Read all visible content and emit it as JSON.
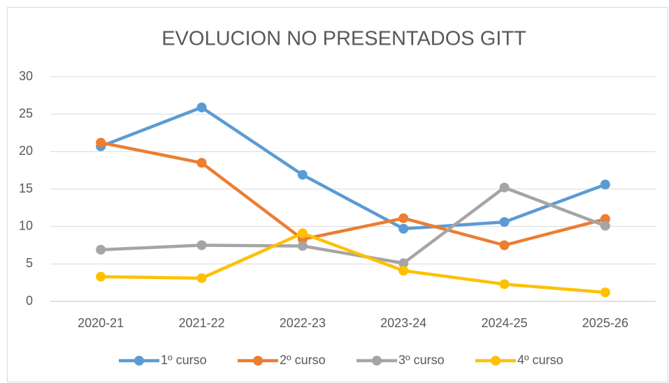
{
  "chart_data": {
    "type": "line",
    "title": "EVOLUCION NO PRESENTADOS GITT",
    "categories": [
      "2020-21",
      "2021-22",
      "2022-23",
      "2023-24",
      "2024-25",
      "2025-26"
    ],
    "series": [
      {
        "name": "1º curso",
        "color": "#5b9bd5",
        "values": [
          20.7,
          25.9,
          16.9,
          9.7,
          10.6,
          15.6
        ]
      },
      {
        "name": "2º curso",
        "color": "#ed7d31",
        "values": [
          21.2,
          18.5,
          8.3,
          11.1,
          7.5,
          11.0
        ]
      },
      {
        "name": "3º curso",
        "color": "#a5a5a5",
        "values": [
          6.9,
          7.5,
          7.4,
          5.1,
          15.2,
          10.1
        ]
      },
      {
        "name": "4º curso",
        "color": "#ffc000",
        "values": [
          3.3,
          3.1,
          9.1,
          4.1,
          2.3,
          1.2
        ]
      }
    ],
    "ylim": [
      0,
      30
    ],
    "yticks": [
      0,
      5,
      10,
      15,
      20,
      25,
      30
    ],
    "grid": true,
    "legend": "bottom"
  }
}
